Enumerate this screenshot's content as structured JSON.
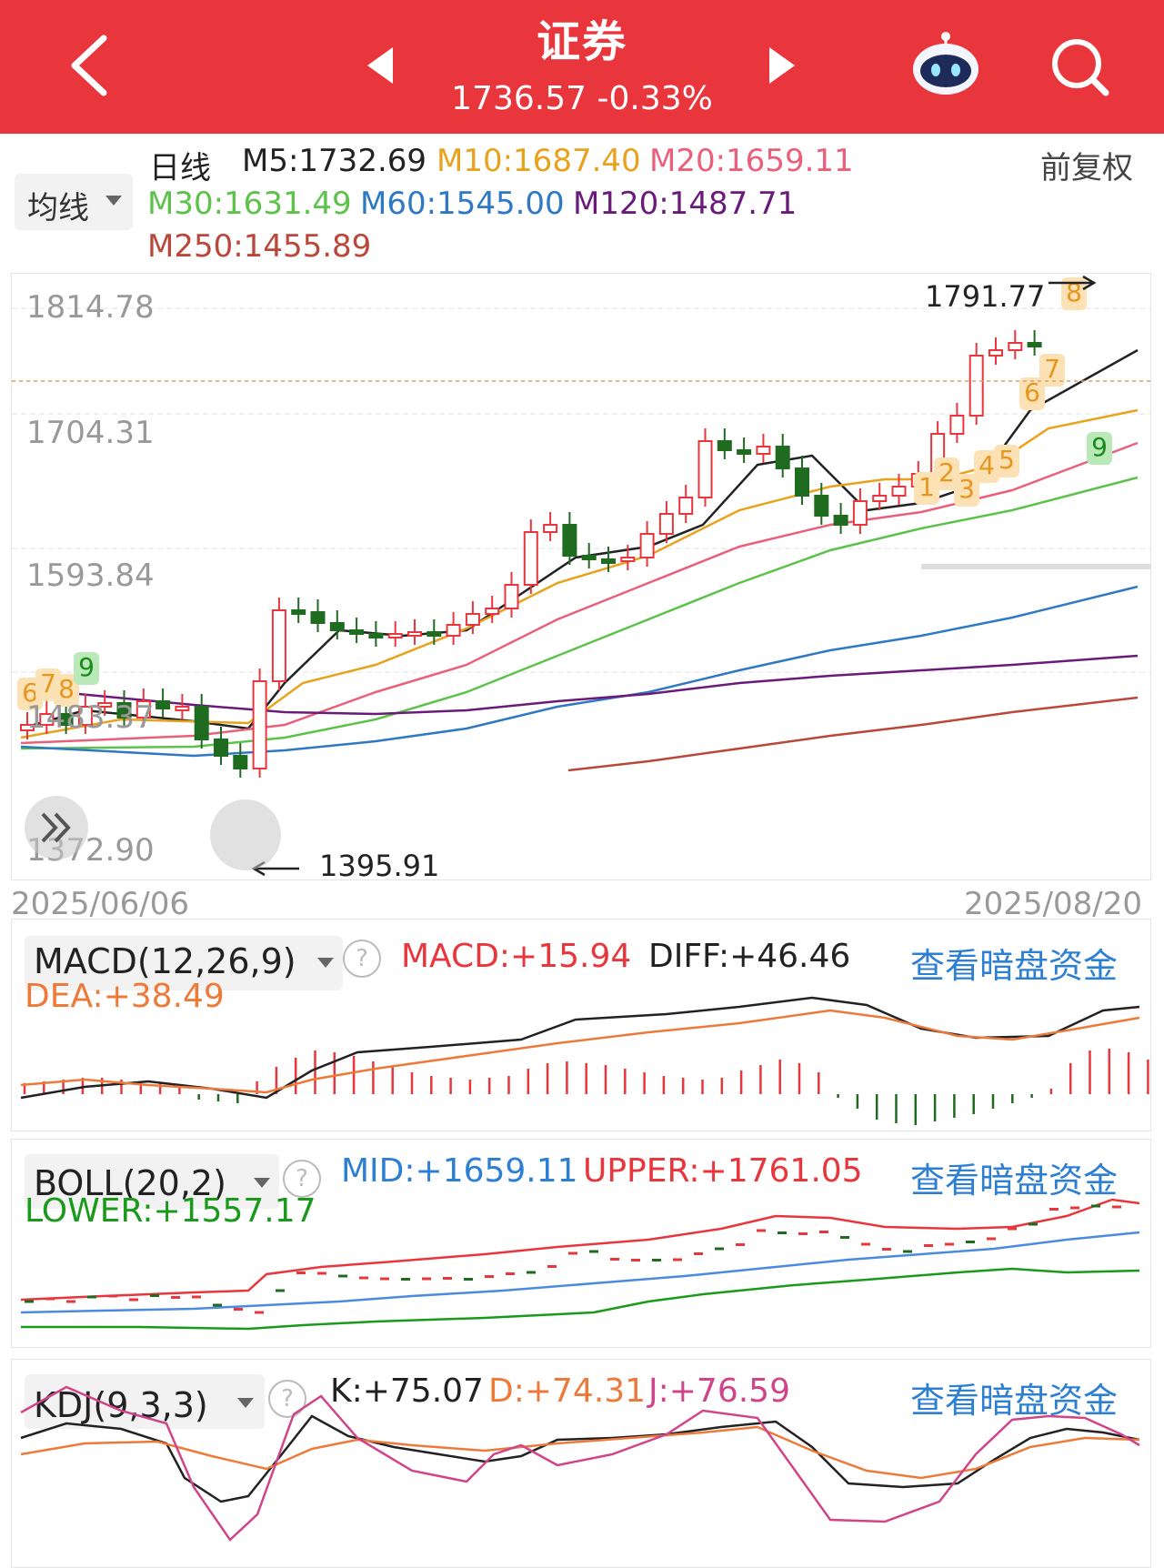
{
  "header": {
    "back_icon": "chevron-left-icon",
    "title": "证券",
    "index_value": "1736.57",
    "change_pct": "-0.33%",
    "prev_icon": "triangle-left-icon",
    "next_icon": "triangle-right-icon",
    "robot_icon": "robot-assistant-icon",
    "search_icon": "search-icon",
    "bg_color": "#e8363c"
  },
  "ma_bar": {
    "period": "日线",
    "dropdown_label": "均线",
    "adjust": "前复权",
    "ma": [
      {
        "label": "M5:1732.69",
        "color": "#222222"
      },
      {
        "label": "M10:1687.40",
        "color": "#e8a21c"
      },
      {
        "label": "M20:1659.11",
        "color": "#e9607a"
      },
      {
        "label": "M30:1631.49",
        "color": "#5cc24a"
      },
      {
        "label": "M60:1545.00",
        "color": "#2f78c4"
      },
      {
        "label": "M120:1487.71",
        "color": "#6a1b7a"
      },
      {
        "label": "M250:1455.89",
        "color": "#b9473a"
      }
    ]
  },
  "main_chart": {
    "y_labels": [
      "1814.78",
      "1704.31",
      "1593.84",
      "1483.37",
      "1372.90"
    ],
    "high_label": "1791.77",
    "low_label": "1395.91",
    "date_start": "2025/06/06",
    "date_end": "2025/08/20",
    "collapse_icon": "double-chevron-right-icon",
    "td_markers_left": [
      "6",
      "7",
      "8"
    ],
    "td_nine_left": "9",
    "td_markers_right": [
      "1",
      "2",
      "3",
      "4",
      "5",
      "6",
      "7",
      "8"
    ],
    "td_nine_right": "9"
  },
  "macd": {
    "selector": "MACD(12,26,9)",
    "macd": "MACD:+15.94",
    "diff": "DIFF:+46.46",
    "dea": "DEA:+38.49",
    "link": "查看暗盘资金"
  },
  "boll": {
    "selector": "BOLL(20,2)",
    "mid": "MID:+1659.11",
    "upper": "UPPER:+1761.05",
    "lower": "LOWER:+1557.17",
    "link": "查看暗盘资金"
  },
  "kdj": {
    "selector": "KDJ(9,3,3)",
    "k": "K:+75.07",
    "d": "D:+74.31",
    "j": "J:+76.59",
    "link": "查看暗盘资金"
  },
  "colors": {
    "up": "#e8363c",
    "down": "#1f6b1f",
    "link": "#2d7fd3"
  }
}
